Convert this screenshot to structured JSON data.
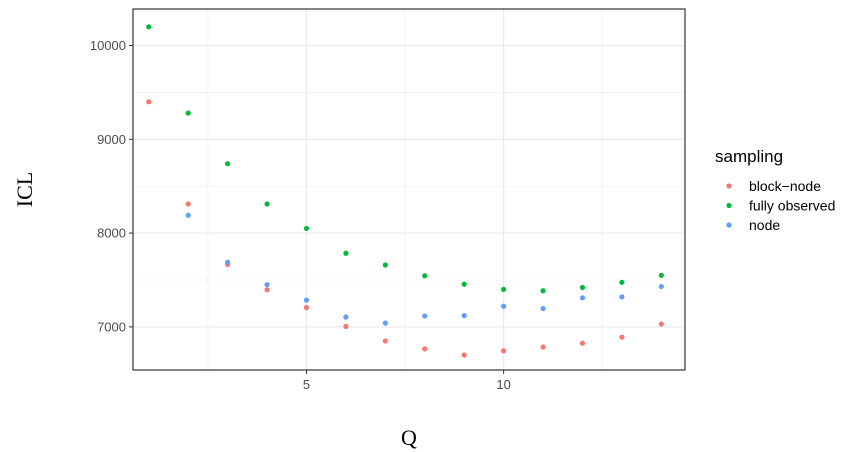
{
  "chart_data": {
    "type": "scatter",
    "xlabel": "Q",
    "ylabel": "ICL",
    "xlim": [
      0.6,
      14.6
    ],
    "ylim": [
      6540,
      10390
    ],
    "x_ticks": [
      5,
      10
    ],
    "y_ticks": [
      7000,
      8000,
      9000,
      10000
    ],
    "grid": true,
    "legend": {
      "title": "sampling",
      "position": "right"
    },
    "series": [
      {
        "name": "block−node",
        "color": "#F8766D",
        "points": [
          [
            1,
            9400
          ],
          [
            2,
            8310
          ],
          [
            3,
            7665
          ],
          [
            4,
            7395
          ],
          [
            5,
            7205
          ],
          [
            6,
            7005
          ],
          [
            7,
            6850
          ],
          [
            8,
            6765
          ],
          [
            9,
            6700
          ],
          [
            10,
            6745
          ],
          [
            11,
            6785
          ],
          [
            12,
            6825
          ],
          [
            13,
            6890
          ],
          [
            14,
            7030
          ]
        ]
      },
      {
        "name": "fully observed",
        "color": "#00BA38",
        "points": [
          [
            1,
            10200
          ],
          [
            2,
            9280
          ],
          [
            3,
            8740
          ],
          [
            4,
            8310
          ],
          [
            5,
            8050
          ],
          [
            6,
            7785
          ],
          [
            7,
            7660
          ],
          [
            8,
            7545
          ],
          [
            9,
            7455
          ],
          [
            10,
            7400
          ],
          [
            11,
            7385
          ],
          [
            12,
            7420
          ],
          [
            13,
            7475
          ],
          [
            14,
            7550
          ]
        ]
      },
      {
        "name": "node",
        "color": "#619CFF",
        "points": [
          [
            2,
            8190
          ],
          [
            3,
            7690
          ],
          [
            4,
            7450
          ],
          [
            5,
            7285
          ],
          [
            6,
            7105
          ],
          [
            7,
            7040
          ],
          [
            8,
            7115
          ],
          [
            9,
            7120
          ],
          [
            10,
            7220
          ],
          [
            11,
            7195
          ],
          [
            12,
            7310
          ],
          [
            13,
            7320
          ],
          [
            14,
            7430
          ]
        ]
      }
    ]
  }
}
